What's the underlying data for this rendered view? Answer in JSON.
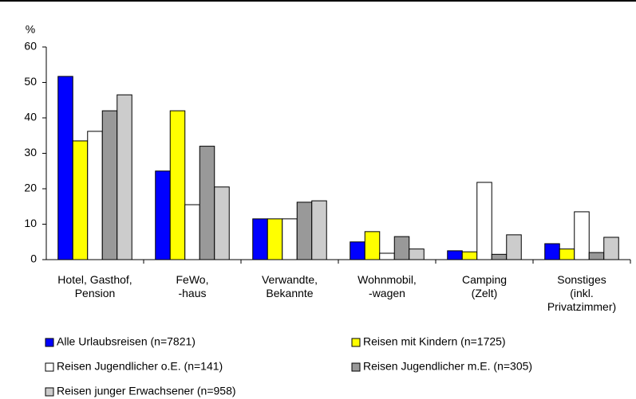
{
  "chart_data": {
    "type": "bar",
    "y_label": "%",
    "categories": [
      "Hotel, Gasthof,\nPension",
      "FeWo,\n-haus",
      "Verwandte,\nBekannte",
      "Wohnmobil,\n-wagen",
      "Camping\n(Zelt)",
      "Sonstiges\n(inkl.\nPrivatzimmer)"
    ],
    "series": [
      {
        "name": "Alle Urlaubsreisen (n=7821)",
        "color": "#0000ff",
        "values": [
          51.7,
          25,
          11.5,
          5,
          2.5,
          4.5
        ]
      },
      {
        "name": "Reisen mit Kindern (n=1725)",
        "color": "#ffff00",
        "values": [
          33.5,
          42,
          11.5,
          7.9,
          2.2,
          3
        ]
      },
      {
        "name": "Reisen Jugendlicher o.E. (n=141)",
        "color": "#ffffff",
        "values": [
          36.2,
          15.5,
          11.5,
          1.8,
          21.8,
          13.5
        ]
      },
      {
        "name": "Reisen Jugendlicher m.E. (n=305)",
        "color": "#999999",
        "values": [
          42,
          32,
          16.2,
          6.5,
          1.5,
          2
        ]
      },
      {
        "name": "Reisen junger Erwachsener (n=958)",
        "color": "#cccccc",
        "values": [
          46.5,
          20.5,
          16.6,
          3,
          7,
          6.3
        ]
      }
    ],
    "ylim": [
      0,
      60
    ],
    "yticks": [
      0,
      10,
      20,
      30,
      40,
      50,
      60
    ],
    "grid": false
  }
}
